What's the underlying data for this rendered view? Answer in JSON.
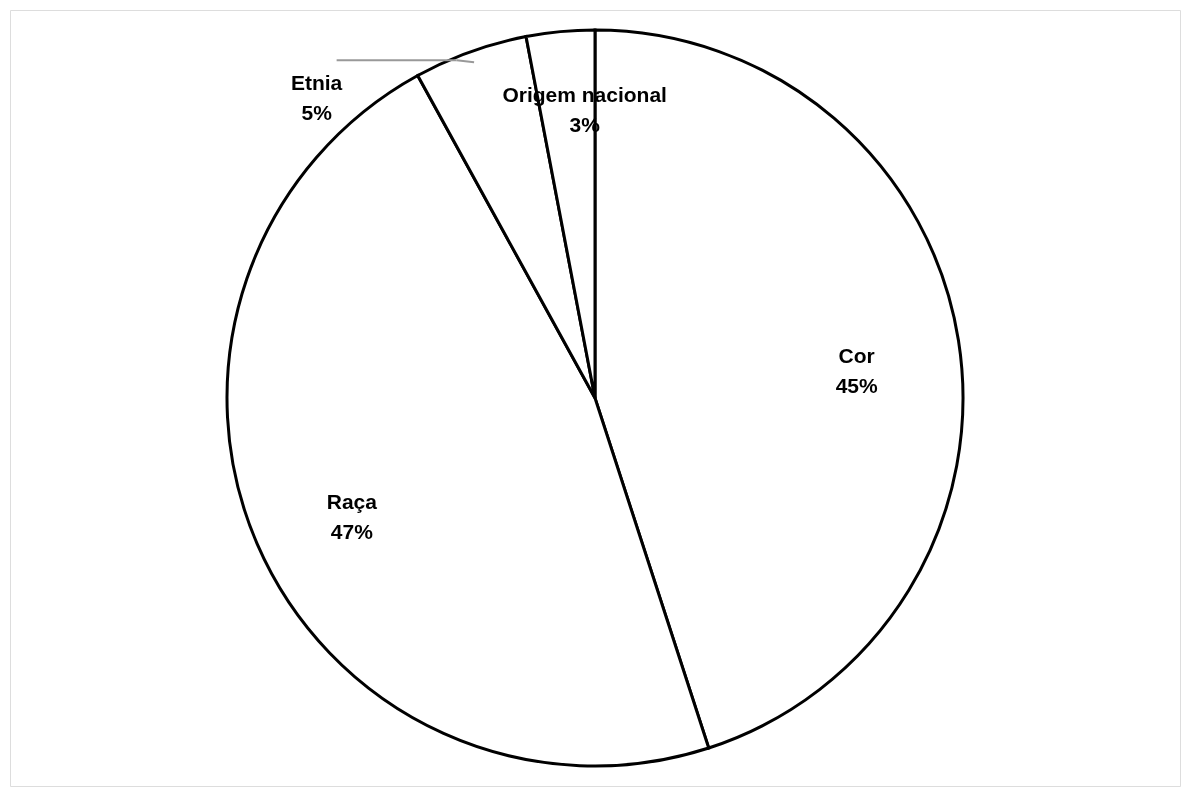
{
  "chart_data": {
    "type": "pie",
    "categories": [
      "Cor",
      "Raça",
      "Etnia",
      "Origem nacional"
    ],
    "values": [
      45,
      47,
      5,
      3
    ],
    "colors": [
      "#ffffff",
      "#ffffff",
      "#ffffff",
      "#ffffff"
    ],
    "value_labels": [
      "45%",
      "47%",
      "5%",
      "3%"
    ],
    "legend": false
  }
}
